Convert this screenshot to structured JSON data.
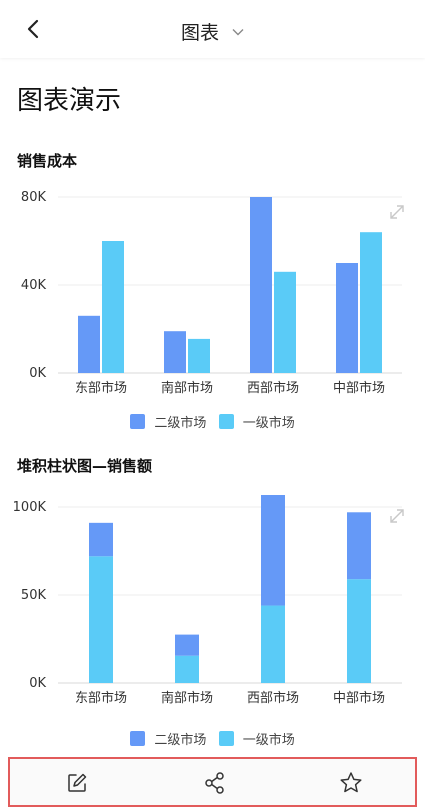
{
  "header": {
    "title": "图表",
    "back_icon": "chevron-left-icon",
    "dropdown_icon": "chevron-down-icon"
  },
  "page_title": "图表演示",
  "colors": {
    "series1": "#6599f7",
    "series2": "#5acbf7"
  },
  "chart_data": [
    {
      "type": "bar",
      "title": "销售成本",
      "categories": [
        "东部市场",
        "南部市场",
        "西部市场",
        "中部市场"
      ],
      "series": [
        {
          "name": "二级市场",
          "values": [
            26000,
            19000,
            80000,
            50000
          ]
        },
        {
          "name": "一级市场",
          "values": [
            60000,
            15500,
            46000,
            64000
          ]
        }
      ],
      "ylim": [
        0,
        80000
      ],
      "yticks": [
        "0K",
        "40K",
        "80K"
      ],
      "expand_icon": "expand-icon"
    },
    {
      "type": "bar",
      "stacked": true,
      "title": "堆积柱状图—销售额",
      "categories": [
        "东部市场",
        "南部市场",
        "西部市场",
        "中部市场"
      ],
      "series": [
        {
          "name": "一级市场",
          "values": [
            72000,
            15500,
            44000,
            59000
          ]
        },
        {
          "name": "二级市场",
          "values": [
            19000,
            12000,
            67000,
            38000
          ]
        }
      ],
      "legend": [
        "二级市场",
        "一级市场"
      ],
      "ylim": [
        0,
        100000
      ],
      "yticks": [
        "0K",
        "50K",
        "100K"
      ],
      "expand_icon": "expand-icon"
    }
  ],
  "toolbar": {
    "edit_icon": "edit-icon",
    "share_icon": "share-icon",
    "favorite_icon": "star-icon"
  }
}
